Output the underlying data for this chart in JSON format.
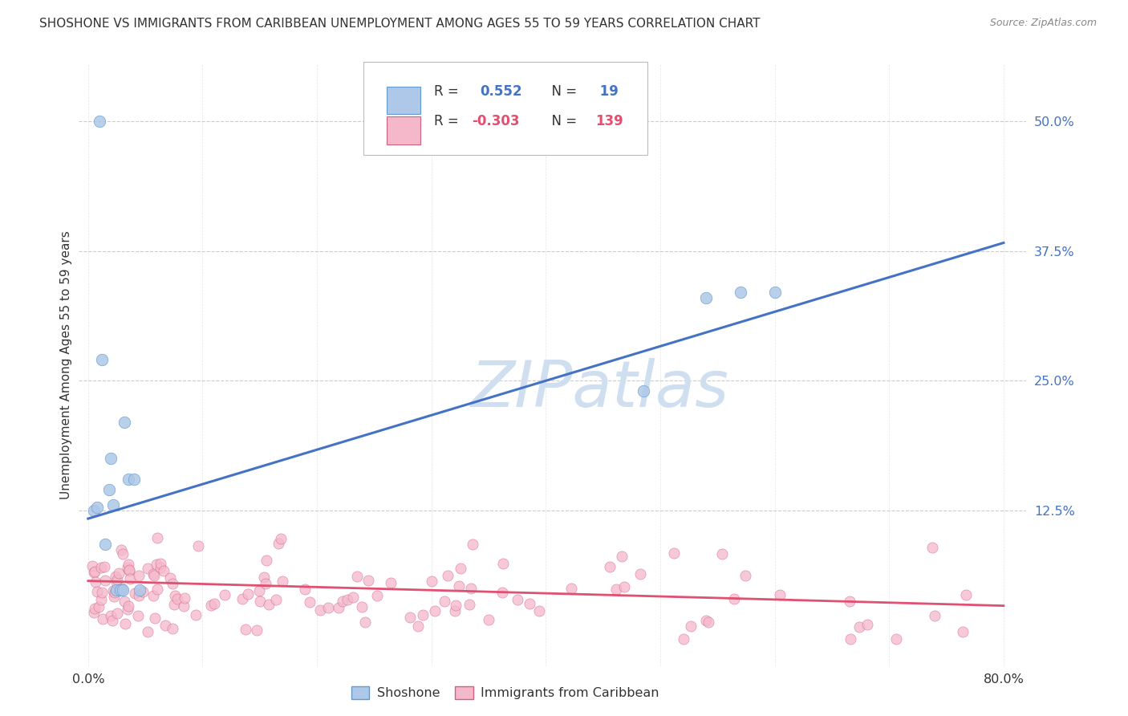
{
  "title": "SHOSHONE VS IMMIGRANTS FROM CARIBBEAN UNEMPLOYMENT AMONG AGES 55 TO 59 YEARS CORRELATION CHART",
  "source": "Source: ZipAtlas.com",
  "ylabel_label": "Unemployment Among Ages 55 to 59 years",
  "legend_label1": "Shoshone",
  "legend_label2": "Immigrants from Caribbean",
  "R1": 0.552,
  "N1": 19,
  "R2": -0.303,
  "N2": 139,
  "blue_color": "#adc8e8",
  "blue_line_color": "#4472c4",
  "blue_scatter_edge": "#6699cc",
  "pink_color": "#f5b8cb",
  "pink_line_color": "#e05070",
  "pink_scatter_edge": "#d06080",
  "background_color": "#ffffff",
  "watermark_color": "#d0dff0",
  "grid_color": "#cccccc",
  "tick_color": "#4472c4",
  "text_color": "#333333",
  "shoshone_x": [
    0.005,
    0.008,
    0.01,
    0.012,
    0.015,
    0.018,
    0.02,
    0.022,
    0.025,
    0.028,
    0.03,
    0.032,
    0.035,
    0.04,
    0.045,
    0.485,
    0.54,
    0.57,
    0.6
  ],
  "shoshone_y": [
    0.125,
    0.128,
    0.5,
    0.27,
    0.092,
    0.145,
    0.175,
    0.13,
    0.048,
    0.048,
    0.048,
    0.21,
    0.155,
    0.155,
    0.048,
    0.24,
    0.33,
    0.335,
    0.335
  ],
  "blue_line_x0": 0.0,
  "blue_line_y0": 0.117,
  "blue_line_x1": 0.8,
  "blue_line_y1": 0.383,
  "pink_line_x0": 0.0,
  "pink_line_y0": 0.057,
  "pink_line_x1": 0.8,
  "pink_line_y1": 0.033,
  "xlim_min": -0.008,
  "xlim_max": 0.82,
  "ylim_min": -0.025,
  "ylim_max": 0.555
}
